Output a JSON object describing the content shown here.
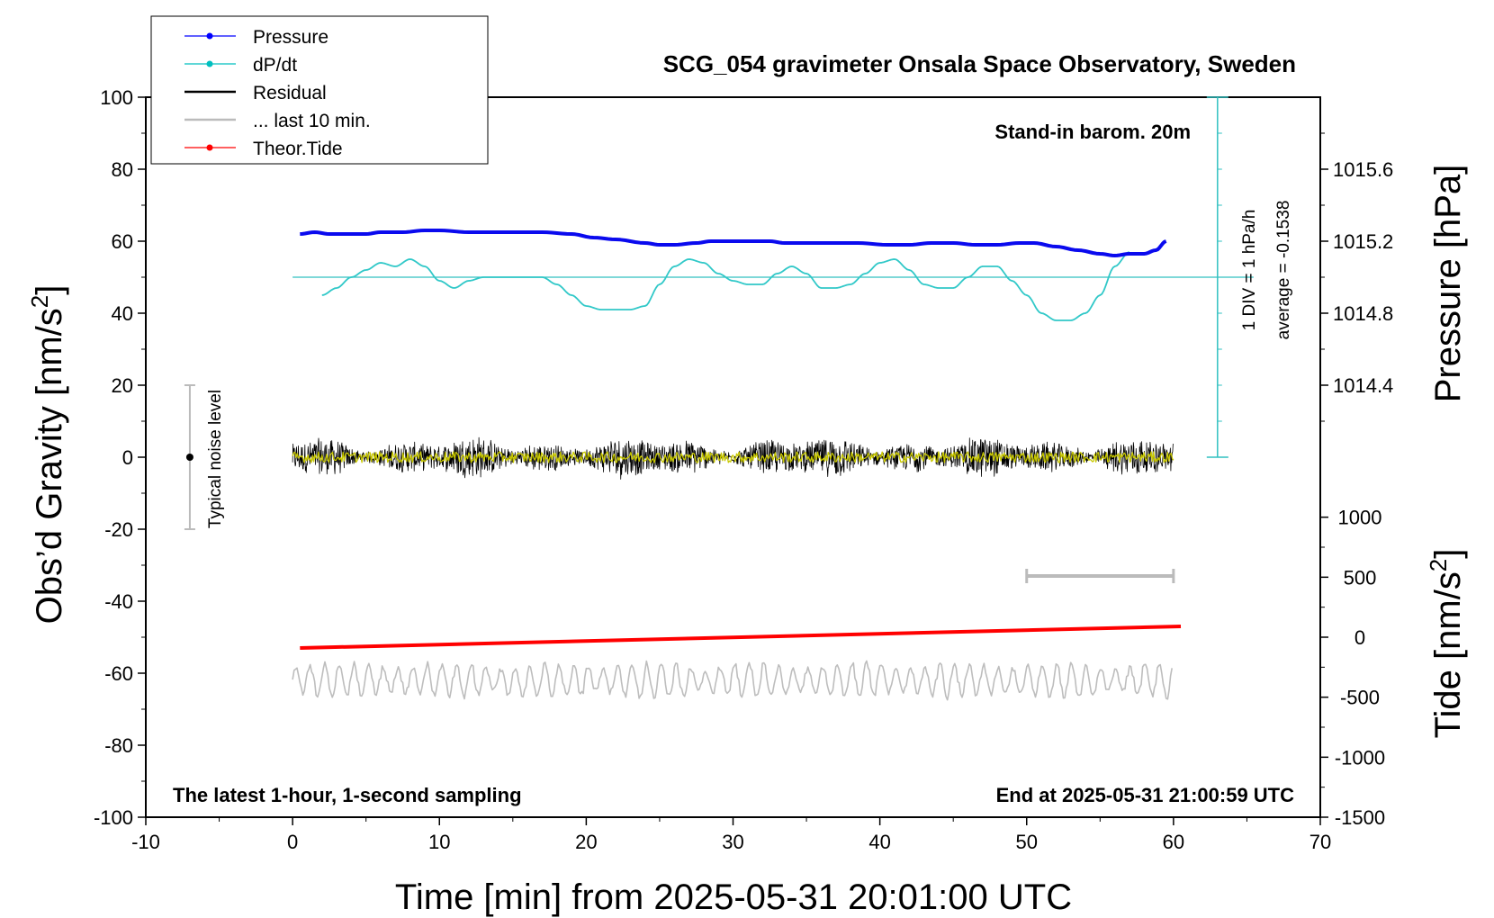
{
  "chart_data": {
    "type": "line",
    "title": "SCG_054 gravimeter Onsala Space Observatory, Sweden",
    "xlabel": "Time [min] from 2025-05-31 20:01:00 UTC",
    "ylabel_left": "Obs’d Gravity [nm/s2]",
    "ylabel_pressure": "Pressure [hPa]",
    "ylabel_tide": "Tide [nm/s2]",
    "xlim": [
      -10,
      70
    ],
    "ylim": [
      -100,
      100
    ],
    "x_ticks": [
      "-10",
      "0",
      "10",
      "20",
      "30",
      "40",
      "50",
      "60",
      "70"
    ],
    "y_ticks": [
      "100",
      "80",
      "60",
      "40",
      "20",
      "0",
      "-20",
      "-40",
      "-60",
      "-80",
      "-100"
    ],
    "pressure_ticks": [
      "1015.6",
      "1015.2",
      "1014.8",
      "1014.4"
    ],
    "pressure_tick_values": [
      1015.6,
      1015.2,
      1014.8,
      1014.4
    ],
    "tide_ticks": [
      "1000",
      "500",
      "0",
      "-500",
      "-1000",
      "-1500"
    ],
    "tide_tick_values": [
      1000,
      500,
      0,
      -500,
      -1000,
      -1500
    ],
    "legend": {
      "placement": "top-left",
      "entries": [
        {
          "label": "Pressure",
          "color": "#0000ff",
          "marker": true
        },
        {
          "label": "dP/dt",
          "color": "#00bfbf",
          "marker": true
        },
        {
          "label": "Residual",
          "color": "#000000",
          "marker": false
        },
        {
          "label": "... last 10 min.",
          "color": "#bbbbbb",
          "marker": false
        },
        {
          "label": "Theor.Tide",
          "color": "#ff0000",
          "marker": true
        }
      ]
    },
    "annotations": {
      "barometer": "Stand-in barom. 20m",
      "div_note": "1 DIV = 1 hPa/h",
      "average_note": "average = -0.1538",
      "noise": "Typical noise level",
      "sampling": "The latest 1-hour, 1-second sampling",
      "end_time": "End at 2025-05-31 21:00:59 UTC"
    },
    "noise_bar": {
      "x": -7,
      "center": 0,
      "low": -20,
      "high": 20
    },
    "last10_bar": {
      "x_start": 50,
      "x_end": 60,
      "y": -33
    },
    "dpdt_axis": {
      "x": 63,
      "y_bottom": 0,
      "y_top": 100,
      "baseline_y": 50
    },
    "series": [
      {
        "name": "Pressure",
        "color": "#0000ff",
        "x": [
          0.5,
          1.5,
          2.5,
          3.5,
          5,
          6,
          7.5,
          9,
          10,
          12,
          14,
          16,
          17,
          19,
          20.5,
          22,
          24,
          25,
          26,
          27.5,
          28.5,
          30,
          31.5,
          32.5,
          33.5,
          35,
          37,
          38.5,
          40.5,
          42,
          43.5,
          45,
          46.5,
          48,
          49.5,
          50.5,
          52,
          53.5,
          55,
          56,
          57,
          58,
          58.8,
          59.5
        ],
        "values": [
          1015.24,
          1015.25,
          1015.24,
          1015.24,
          1015.24,
          1015.25,
          1015.25,
          1015.26,
          1015.26,
          1015.25,
          1015.25,
          1015.25,
          1015.25,
          1015.24,
          1015.22,
          1015.21,
          1015.19,
          1015.18,
          1015.18,
          1015.19,
          1015.2,
          1015.2,
          1015.2,
          1015.2,
          1015.19,
          1015.19,
          1015.19,
          1015.19,
          1015.18,
          1015.18,
          1015.19,
          1015.19,
          1015.18,
          1015.18,
          1015.19,
          1015.19,
          1015.17,
          1015.15,
          1015.13,
          1015.12,
          1015.13,
          1015.13,
          1015.15,
          1015.2
        ]
      },
      {
        "name": "dP/dt",
        "color": "#00bfbf",
        "x": [
          2,
          3,
          4,
          5,
          6,
          7,
          8,
          9,
          10,
          11,
          12,
          13,
          14,
          15,
          16,
          17,
          18,
          19,
          20,
          21,
          22,
          23,
          24,
          25,
          26,
          27,
          28,
          29,
          30,
          31,
          32,
          33,
          34,
          35,
          36,
          37,
          38,
          39,
          40,
          41,
          42,
          43,
          44,
          45,
          46,
          47,
          48,
          49,
          50,
          51,
          52,
          53,
          54,
          55,
          56,
          57
        ],
        "values": [
          45,
          47,
          50,
          52,
          54,
          53,
          55,
          53,
          49,
          47,
          49,
          50,
          50,
          50,
          50,
          50,
          48,
          45,
          42,
          41,
          41,
          41,
          42,
          48,
          53,
          55,
          54,
          51,
          49,
          48,
          48,
          51,
          53,
          51,
          47,
          47,
          48,
          51,
          54,
          55,
          52,
          48,
          47,
          47,
          50,
          53,
          53,
          49,
          45,
          40,
          38,
          38,
          40,
          45,
          53,
          57
        ]
      },
      {
        "name": "Residual",
        "color": "#000000",
        "x_range": [
          0,
          60
        ],
        "center": 0,
        "amplitude": 5
      },
      {
        "name": "Residual (smoothed)",
        "color": "#c8c800",
        "x_range": [
          0,
          60
        ],
        "center": 0,
        "amplitude": 1.5
      },
      {
        "name": "... last 10 min.",
        "color": "#bbbbbb",
        "x_range": [
          0,
          60
        ],
        "center": -62,
        "amplitude": 4
      },
      {
        "name": "Theor.Tide",
        "color": "#ff0000",
        "x": [
          0.5,
          60.5
        ],
        "values": [
          -53,
          -47
        ]
      }
    ]
  }
}
